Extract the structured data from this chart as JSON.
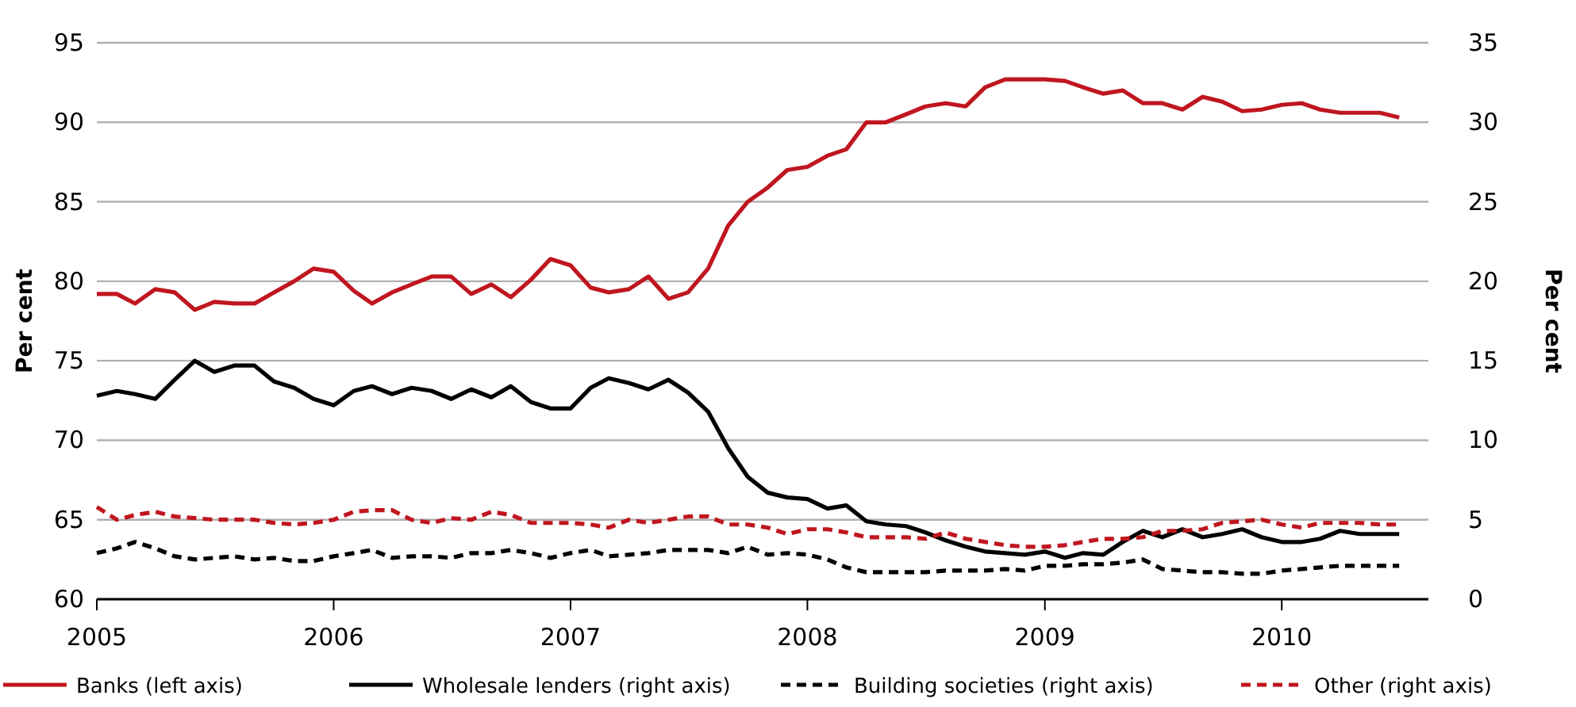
{
  "chart_data": {
    "type": "line",
    "ylabel": "Per cent",
    "y2label": "Per cent",
    "x": [
      "2005-01",
      "2005-02",
      "2005-03",
      "2005-04",
      "2005-05",
      "2005-06",
      "2005-07",
      "2005-08",
      "2005-09",
      "2005-10",
      "2005-11",
      "2005-12",
      "2006-01",
      "2006-02",
      "2006-03",
      "2006-04",
      "2006-05",
      "2006-06",
      "2006-07",
      "2006-08",
      "2006-09",
      "2006-10",
      "2006-11",
      "2006-12",
      "2007-01",
      "2007-02",
      "2007-03",
      "2007-04",
      "2007-05",
      "2007-06",
      "2007-07",
      "2007-08",
      "2007-09",
      "2007-10",
      "2007-11",
      "2007-12",
      "2008-01",
      "2008-02",
      "2008-03",
      "2008-04",
      "2008-05",
      "2008-06",
      "2008-07",
      "2008-08",
      "2008-09",
      "2008-10",
      "2008-11",
      "2008-12",
      "2009-01",
      "2009-02",
      "2009-03",
      "2009-04",
      "2009-05",
      "2009-06",
      "2009-07",
      "2009-08",
      "2009-09",
      "2009-10",
      "2009-11",
      "2009-12",
      "2010-01",
      "2010-02",
      "2010-03",
      "2010-04",
      "2010-05",
      "2010-06",
      "2010-07"
    ],
    "series": [
      {
        "name": "Banks (left axis)",
        "color": "#c0161f",
        "line_style": "solid",
        "values": [
          79.2,
          79.2,
          78.6,
          79.5,
          79.3,
          78.2,
          78.7,
          78.6,
          78.6,
          79.3,
          80.0,
          80.8,
          80.6,
          79.4,
          78.6,
          79.3,
          79.8,
          80.3,
          80.3,
          79.2,
          79.8,
          79.0,
          80.1,
          81.4,
          81.0,
          79.6,
          79.3,
          79.5,
          80.3,
          78.9,
          79.3,
          80.8,
          83.5,
          85.0,
          85.9,
          87.0,
          87.2,
          87.9,
          88.3,
          90.0,
          90.0,
          90.5,
          91.0,
          91.2,
          91.0,
          92.2,
          92.7,
          92.7,
          92.7,
          92.6,
          92.2,
          91.8,
          92.0,
          91.2,
          91.2,
          90.8,
          91.6,
          91.3,
          90.7,
          90.8,
          91.1,
          91.2,
          90.8,
          90.6,
          90.6,
          90.6,
          90.3
        ]
      },
      {
        "name": "Wholesale lenders (right axis)",
        "color": "#000000",
        "line_style": "solid",
        "axis": "y2",
        "values": [
          12.8,
          13.1,
          12.9,
          12.6,
          13.8,
          15.0,
          14.3,
          14.7,
          14.7,
          13.7,
          13.3,
          12.6,
          12.2,
          13.1,
          13.4,
          12.9,
          13.3,
          13.1,
          12.6,
          13.2,
          12.7,
          13.4,
          12.4,
          12.0,
          12.0,
          13.3,
          13.9,
          13.6,
          13.2,
          13.8,
          13.0,
          11.8,
          9.5,
          7.7,
          6.7,
          6.4,
          6.3,
          5.7,
          5.9,
          4.9,
          4.7,
          4.6,
          4.2,
          3.7,
          3.3,
          3.0,
          2.9,
          2.8,
          3.0,
          2.6,
          2.9,
          2.8,
          3.6,
          4.3,
          3.9,
          4.4,
          3.9,
          4.1,
          4.4,
          3.9,
          3.6,
          3.6,
          3.8,
          4.3,
          4.1,
          4.1,
          4.1
        ]
      },
      {
        "name": "Building societies (right axis)",
        "color": "#000000",
        "line_style": "dashed",
        "axis": "y2",
        "values": [
          2.9,
          3.2,
          3.6,
          3.2,
          2.7,
          2.5,
          2.6,
          2.7,
          2.5,
          2.6,
          2.4,
          2.4,
          2.7,
          2.9,
          3.1,
          2.6,
          2.7,
          2.7,
          2.6,
          2.9,
          2.9,
          3.1,
          2.9,
          2.6,
          2.9,
          3.1,
          2.7,
          2.8,
          2.9,
          3.1,
          3.1,
          3.1,
          2.9,
          3.3,
          2.8,
          2.9,
          2.8,
          2.5,
          2.0,
          1.7,
          1.7,
          1.7,
          1.7,
          1.8,
          1.8,
          1.8,
          1.9,
          1.8,
          2.1,
          2.1,
          2.2,
          2.2,
          2.3,
          2.5,
          1.9,
          1.8,
          1.7,
          1.7,
          1.6,
          1.6,
          1.8,
          1.9,
          2.0,
          2.1,
          2.1,
          2.1,
          2.1
        ]
      },
      {
        "name": "Other (right axis)",
        "color": "#c0161f",
        "line_style": "dashed",
        "axis": "y2",
        "values": [
          5.8,
          5.0,
          5.3,
          5.5,
          5.2,
          5.1,
          5.0,
          5.0,
          5.0,
          4.8,
          4.7,
          4.8,
          5.0,
          5.5,
          5.6,
          5.6,
          5.0,
          4.8,
          5.1,
          5.0,
          5.5,
          5.3,
          4.8,
          4.8,
          4.8,
          4.7,
          4.5,
          5.0,
          4.8,
          5.0,
          5.2,
          5.2,
          4.7,
          4.7,
          4.5,
          4.1,
          4.4,
          4.4,
          4.2,
          3.9,
          3.9,
          3.9,
          3.8,
          4.2,
          3.8,
          3.6,
          3.4,
          3.3,
          3.3,
          3.4,
          3.6,
          3.8,
          3.8,
          3.9,
          4.3,
          4.3,
          4.4,
          4.8,
          4.9,
          5.0,
          4.7,
          4.5,
          4.8,
          4.8,
          4.8,
          4.7,
          4.7
        ]
      }
    ],
    "xlim": [
      "2005-01-01",
      "2010-08-15"
    ],
    "xticks": [
      {
        "value": "2005",
        "label": "2005"
      },
      {
        "value": "2006",
        "label": "2006"
      },
      {
        "value": "2007",
        "label": "2007"
      },
      {
        "value": "2008",
        "label": "2008"
      },
      {
        "value": "2009",
        "label": "2009"
      },
      {
        "value": "2010",
        "label": "2010"
      }
    ],
    "ylim": [
      60,
      95
    ],
    "yticks": [
      60,
      65,
      70,
      75,
      80,
      85,
      90,
      95
    ],
    "y2lim": [
      0,
      35
    ],
    "y2ticks": [
      0,
      5,
      10,
      15,
      20,
      25,
      30,
      35
    ],
    "grid": "y",
    "legend": "bottom",
    "marker": "none"
  }
}
